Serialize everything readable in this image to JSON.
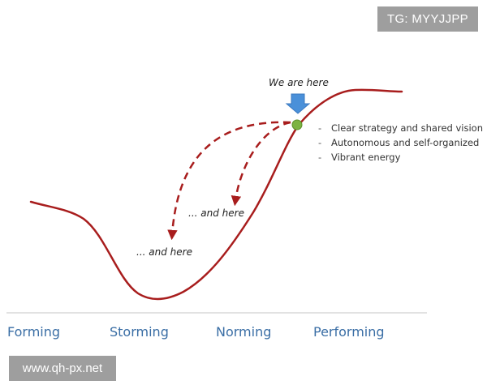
{
  "watermark": {
    "tag": "TG: MYYJJPP",
    "site": "www.qh-px.net"
  },
  "stages": [
    "Forming",
    "Storming",
    "Norming",
    "Performing"
  ],
  "callouts": {
    "current": "We are here",
    "back_norming": "... and here",
    "back_storming": "... and here"
  },
  "performing_traits": [
    "Clear strategy and shared vision",
    "Autonomous and self-organized",
    "Vibrant energy"
  ],
  "colors": {
    "curve": "#a81d1d",
    "marker": "#7cb342",
    "pointer_arrow": "#4a90d9",
    "stage_text": "#3a6ea5",
    "baseline": "#d9d9d9"
  }
}
